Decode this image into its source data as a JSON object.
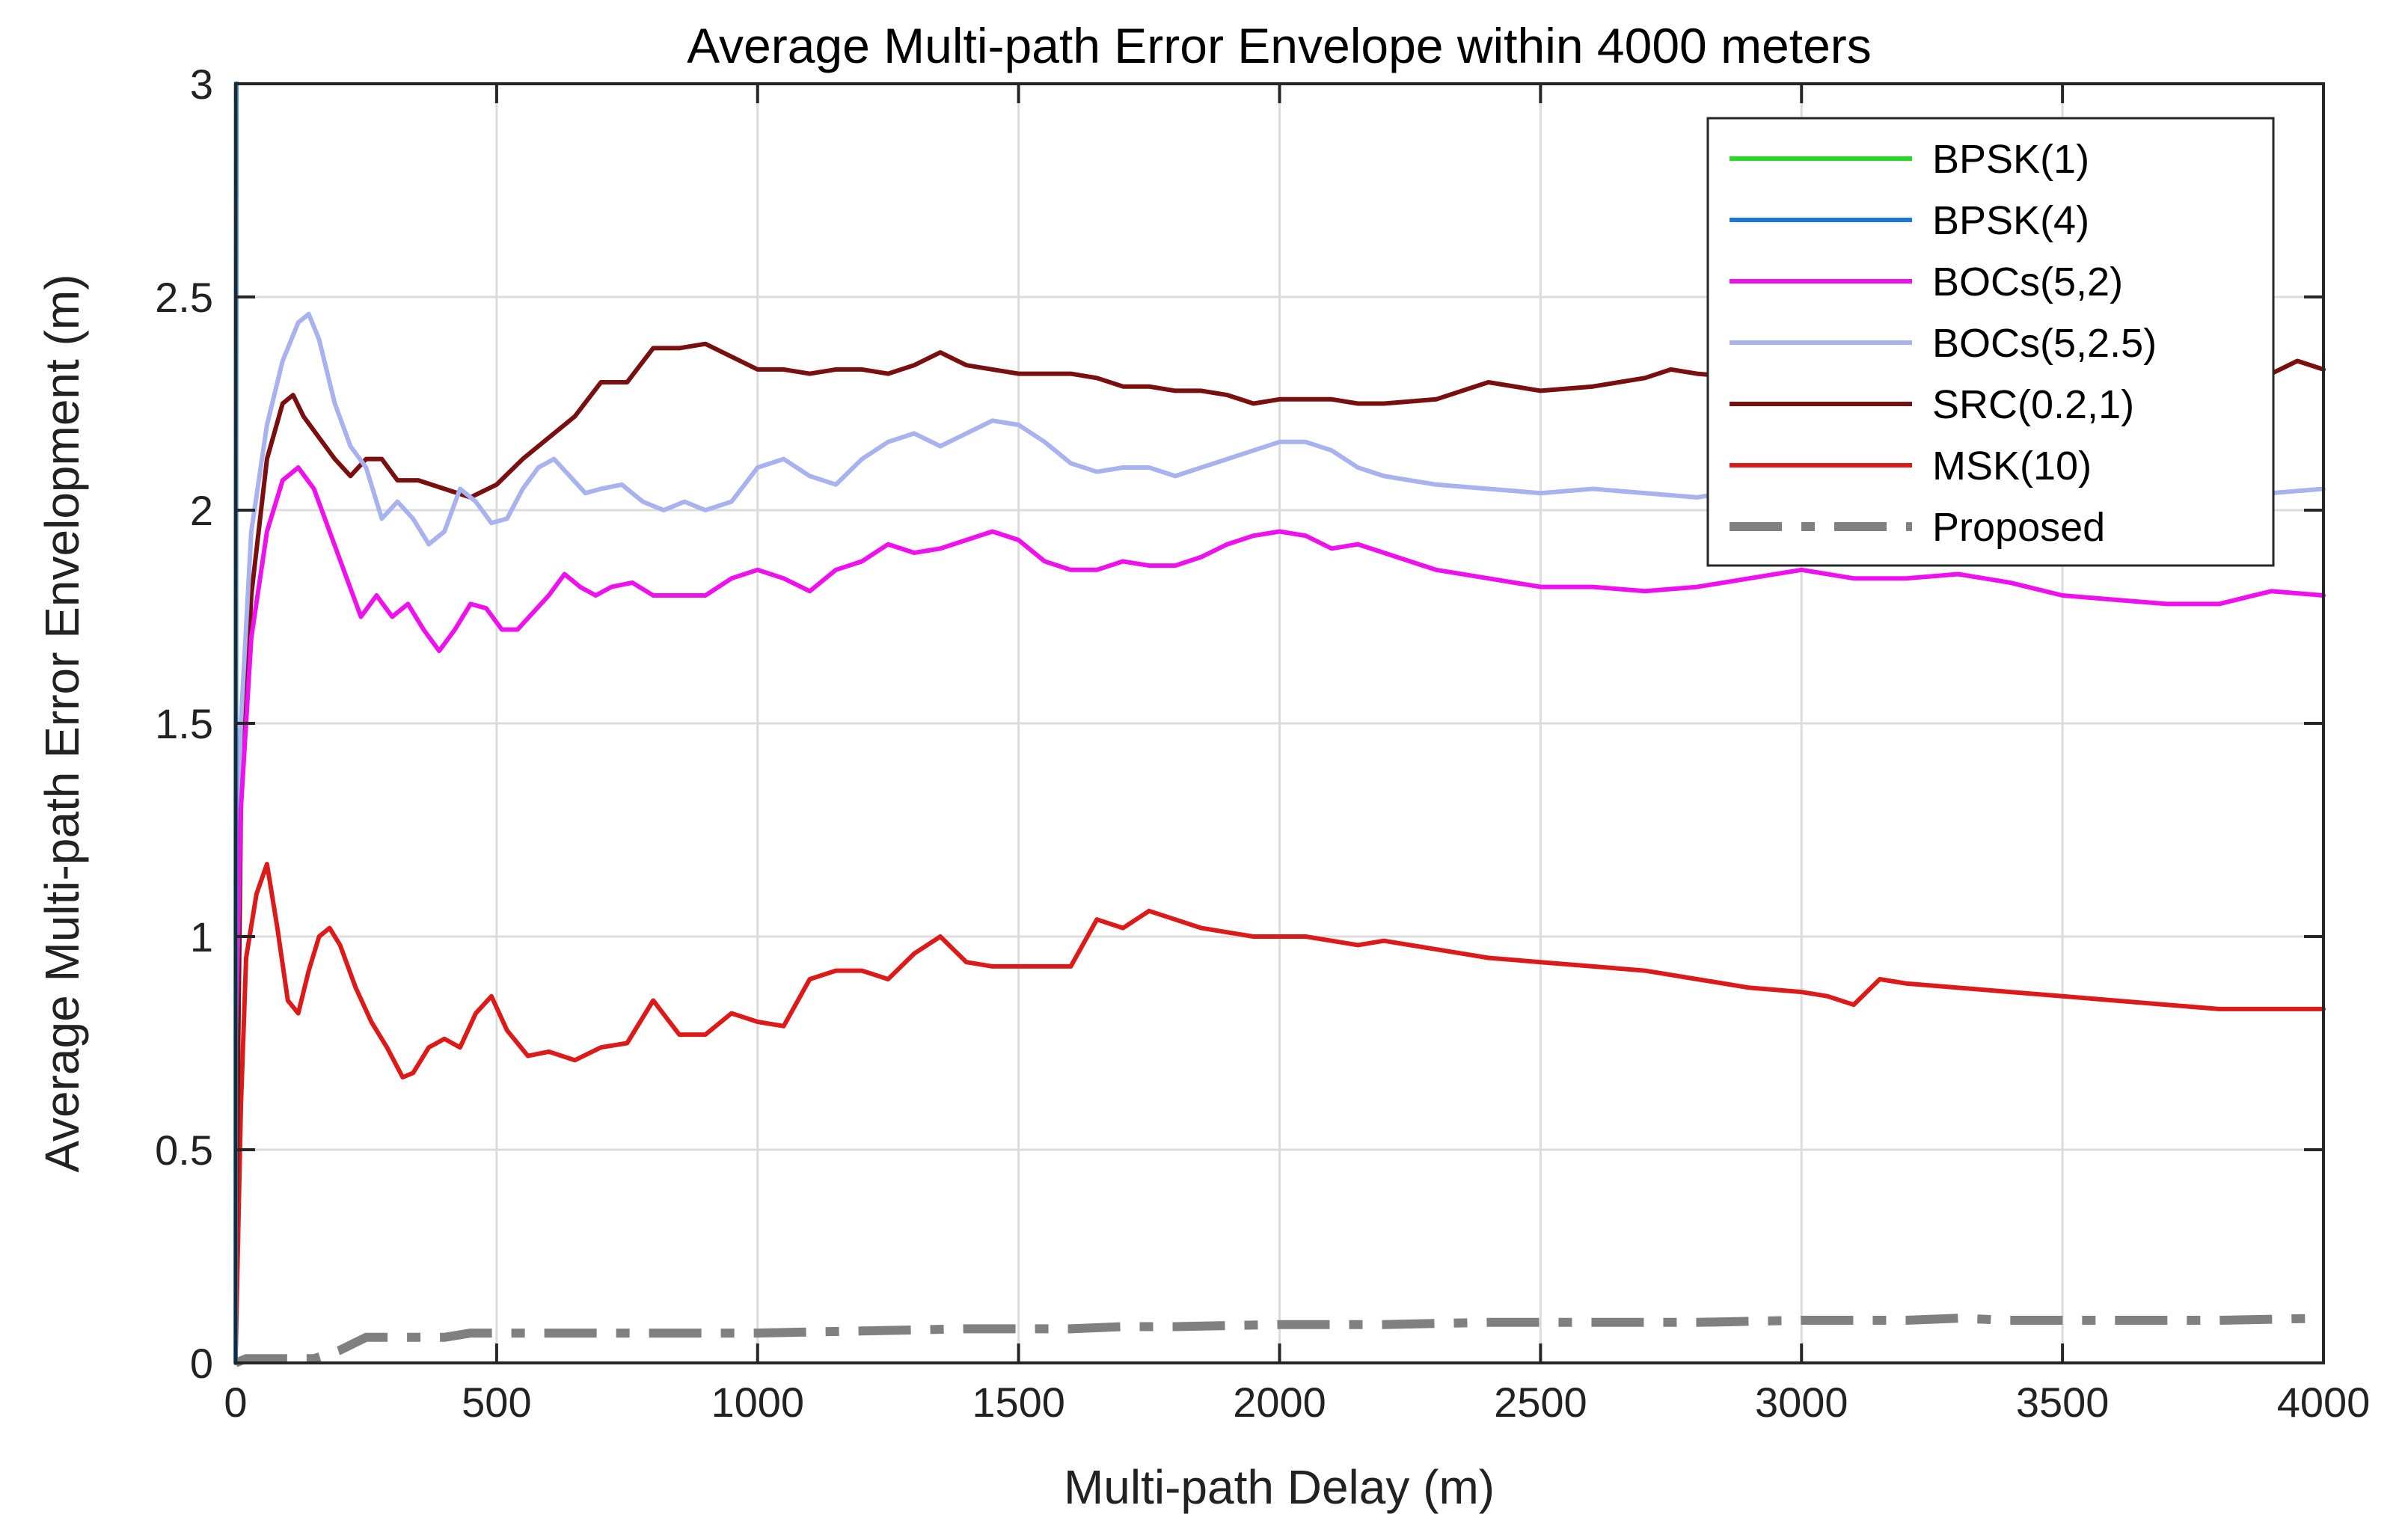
{
  "chart_data": {
    "type": "line",
    "title": "Average Multi-path Error Envelope within 4000 meters",
    "xlabel": "Multi-path Delay (m)",
    "ylabel": "Average Multi-path Error Envelopment (m)",
    "xlim": [
      0,
      4000
    ],
    "ylim": [
      0,
      3
    ],
    "xticks": [
      0,
      500,
      1000,
      1500,
      2000,
      2500,
      3000,
      3500,
      4000
    ],
    "yticks": [
      0,
      0.5,
      1,
      1.5,
      2,
      2.5,
      3
    ],
    "ytick_labels": [
      "0",
      "0.5",
      "1",
      "1.5",
      "2",
      "2.5",
      "3"
    ],
    "grid": true,
    "legend_position": "top-right",
    "series": [
      {
        "name": "BPSK(1)",
        "color": "#22dd22",
        "style": "solid",
        "x": [
          0,
          1,
          3
        ],
        "y": [
          0,
          3.0,
          3.0
        ]
      },
      {
        "name": "BPSK(4)",
        "color": "#1f77d4",
        "style": "solid",
        "x": [
          0,
          1,
          3
        ],
        "y": [
          0,
          3.0,
          3.0
        ]
      },
      {
        "name": "BOCs(5,2)",
        "color": "#ee11ee",
        "style": "solid",
        "x": [
          0,
          10,
          30,
          60,
          90,
          120,
          150,
          180,
          210,
          240,
          270,
          300,
          330,
          360,
          390,
          420,
          450,
          480,
          510,
          540,
          570,
          600,
          630,
          660,
          690,
          720,
          760,
          800,
          850,
          900,
          950,
          1000,
          1050,
          1100,
          1150,
          1200,
          1250,
          1300,
          1350,
          1400,
          1450,
          1500,
          1550,
          1600,
          1650,
          1700,
          1750,
          1800,
          1850,
          1900,
          1950,
          2000,
          2050,
          2100,
          2150,
          2200,
          2300,
          2400,
          2500,
          2600,
          2700,
          2800,
          2900,
          3000,
          3100,
          3200,
          3300,
          3400,
          3500,
          3600,
          3700,
          3800,
          3900,
          4000
        ],
        "y": [
          0.75,
          1.3,
          1.7,
          1.95,
          2.07,
          2.1,
          2.05,
          1.95,
          1.85,
          1.75,
          1.8,
          1.75,
          1.78,
          1.72,
          1.67,
          1.72,
          1.78,
          1.77,
          1.72,
          1.72,
          1.76,
          1.8,
          1.85,
          1.82,
          1.8,
          1.82,
          1.83,
          1.8,
          1.8,
          1.8,
          1.84,
          1.86,
          1.84,
          1.81,
          1.86,
          1.88,
          1.92,
          1.9,
          1.91,
          1.93,
          1.95,
          1.93,
          1.88,
          1.86,
          1.86,
          1.88,
          1.87,
          1.87,
          1.89,
          1.92,
          1.94,
          1.95,
          1.94,
          1.91,
          1.92,
          1.9,
          1.86,
          1.84,
          1.82,
          1.82,
          1.81,
          1.82,
          1.84,
          1.86,
          1.84,
          1.84,
          1.85,
          1.83,
          1.8,
          1.79,
          1.78,
          1.78,
          1.81,
          1.8
        ]
      },
      {
        "name": "BOCs(5,2.5)",
        "color": "#a8b2ee",
        "style": "solid",
        "x": [
          0,
          10,
          30,
          60,
          90,
          120,
          140,
          160,
          190,
          220,
          250,
          280,
          310,
          340,
          370,
          400,
          430,
          460,
          490,
          520,
          550,
          580,
          610,
          640,
          670,
          700,
          740,
          780,
          820,
          860,
          900,
          950,
          1000,
          1050,
          1100,
          1150,
          1200,
          1250,
          1300,
          1350,
          1400,
          1450,
          1500,
          1550,
          1600,
          1650,
          1700,
          1750,
          1800,
          1850,
          1900,
          1950,
          2000,
          2050,
          2100,
          2150,
          2200,
          2300,
          2400,
          2500,
          2600,
          2700,
          2800,
          2900,
          3000,
          3100,
          3200,
          3300,
          3400,
          3500,
          3600,
          3700,
          3800,
          3900,
          4000
        ],
        "y": [
          1.12,
          1.5,
          1.95,
          2.2,
          2.35,
          2.44,
          2.46,
          2.4,
          2.25,
          2.15,
          2.1,
          1.98,
          2.02,
          1.98,
          1.92,
          1.95,
          2.05,
          2.02,
          1.97,
          1.98,
          2.05,
          2.1,
          2.12,
          2.08,
          2.04,
          2.05,
          2.06,
          2.02,
          2.0,
          2.02,
          2.0,
          2.02,
          2.1,
          2.12,
          2.08,
          2.06,
          2.12,
          2.16,
          2.18,
          2.15,
          2.18,
          2.21,
          2.2,
          2.16,
          2.11,
          2.09,
          2.1,
          2.1,
          2.08,
          2.1,
          2.12,
          2.14,
          2.16,
          2.16,
          2.14,
          2.1,
          2.08,
          2.06,
          2.05,
          2.04,
          2.05,
          2.04,
          2.03,
          2.05,
          2.04,
          2.05,
          2.04,
          2.05,
          2.05,
          2.05,
          2.05,
          2.04,
          2.05,
          2.04,
          2.05
        ]
      },
      {
        "name": "SRC(0.2,1)",
        "color": "#7a0f0f",
        "style": "solid",
        "x": [
          0,
          10,
          30,
          60,
          90,
          110,
          130,
          160,
          190,
          220,
          250,
          280,
          310,
          350,
          400,
          450,
          500,
          550,
          600,
          650,
          700,
          750,
          800,
          850,
          900,
          950,
          1000,
          1050,
          1100,
          1150,
          1200,
          1250,
          1300,
          1350,
          1400,
          1450,
          1500,
          1550,
          1600,
          1650,
          1700,
          1750,
          1800,
          1850,
          1900,
          1950,
          2000,
          2050,
          2100,
          2150,
          2200,
          2300,
          2400,
          2500,
          2600,
          2700,
          2750,
          2800,
          2900,
          3000,
          3100,
          3200,
          3300,
          3400,
          3500,
          3600,
          3700,
          3800,
          3900,
          3950,
          4000
        ],
        "y": [
          0.2,
          1.3,
          1.8,
          2.12,
          2.25,
          2.27,
          2.22,
          2.17,
          2.12,
          2.08,
          2.12,
          2.12,
          2.07,
          2.07,
          2.05,
          2.03,
          2.06,
          2.12,
          2.17,
          2.22,
          2.3,
          2.3,
          2.38,
          2.38,
          2.39,
          2.36,
          2.33,
          2.33,
          2.32,
          2.33,
          2.33,
          2.32,
          2.34,
          2.37,
          2.34,
          2.33,
          2.32,
          2.32,
          2.32,
          2.31,
          2.29,
          2.29,
          2.28,
          2.28,
          2.27,
          2.25,
          2.26,
          2.26,
          2.26,
          2.25,
          2.25,
          2.26,
          2.3,
          2.28,
          2.29,
          2.31,
          2.33,
          2.32,
          2.31,
          2.32,
          2.32,
          2.33,
          2.32,
          2.32,
          2.32,
          2.32,
          2.32,
          2.32,
          2.32,
          2.35,
          2.33
        ]
      },
      {
        "name": "MSK(10)",
        "color": "#dd1a1a",
        "style": "solid",
        "x": [
          0,
          10,
          20,
          40,
          60,
          80,
          100,
          120,
          140,
          160,
          180,
          200,
          230,
          260,
          290,
          320,
          340,
          370,
          400,
          430,
          460,
          490,
          520,
          560,
          600,
          650,
          700,
          750,
          800,
          850,
          900,
          950,
          1000,
          1050,
          1100,
          1150,
          1200,
          1250,
          1300,
          1350,
          1400,
          1450,
          1500,
          1550,
          1600,
          1650,
          1700,
          1750,
          1800,
          1850,
          1900,
          1950,
          2000,
          2050,
          2100,
          2150,
          2200,
          2300,
          2400,
          2500,
          2600,
          2700,
          2800,
          2900,
          3000,
          3050,
          3100,
          3150,
          3200,
          3300,
          3400,
          3500,
          3600,
          3700,
          3800,
          3900,
          4000
        ],
        "y": [
          0.02,
          0.6,
          0.95,
          1.1,
          1.17,
          1.02,
          0.85,
          0.82,
          0.92,
          1.0,
          1.02,
          0.98,
          0.88,
          0.8,
          0.74,
          0.67,
          0.68,
          0.74,
          0.76,
          0.74,
          0.82,
          0.86,
          0.78,
          0.72,
          0.73,
          0.71,
          0.74,
          0.75,
          0.85,
          0.77,
          0.77,
          0.82,
          0.8,
          0.79,
          0.9,
          0.92,
          0.92,
          0.9,
          0.96,
          1.0,
          0.94,
          0.93,
          0.93,
          0.93,
          0.93,
          1.04,
          1.02,
          1.06,
          1.04,
          1.02,
          1.01,
          1.0,
          1.0,
          1.0,
          0.99,
          0.98,
          0.99,
          0.97,
          0.95,
          0.94,
          0.93,
          0.92,
          0.9,
          0.88,
          0.87,
          0.86,
          0.84,
          0.9,
          0.89,
          0.88,
          0.87,
          0.86,
          0.85,
          0.84,
          0.83,
          0.83,
          0.83
        ]
      },
      {
        "name": "Proposed",
        "color": "#808080",
        "style": "dashdot",
        "x": [
          0,
          20,
          100,
          150,
          200,
          250,
          300,
          400,
          450,
          600,
          800,
          1000,
          1200,
          1400,
          1600,
          1700,
          1800,
          2000,
          2200,
          2400,
          2600,
          2800,
          3000,
          3200,
          3300,
          3400,
          3600,
          3800,
          4000
        ],
        "y": [
          0.0,
          0.01,
          0.01,
          0.01,
          0.03,
          0.06,
          0.06,
          0.06,
          0.07,
          0.07,
          0.07,
          0.07,
          0.075,
          0.08,
          0.08,
          0.085,
          0.085,
          0.09,
          0.09,
          0.095,
          0.095,
          0.095,
          0.1,
          0.1,
          0.105,
          0.1,
          0.1,
          0.1,
          0.105
        ]
      }
    ]
  }
}
